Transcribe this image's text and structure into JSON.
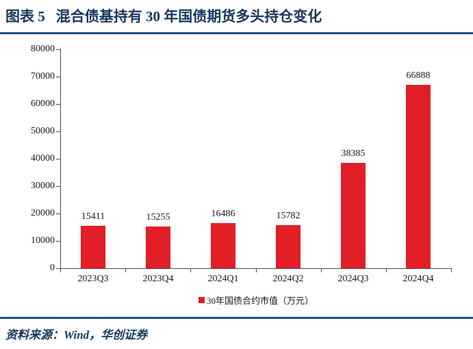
{
  "page": {
    "figure_label": "图表 5",
    "title": "混合债基持有 30 年国债期货多头持仓变化",
    "source_text": "资料来源：Wind，华创证券"
  },
  "colors": {
    "title_navy": "#17375E",
    "rule_blue": "#1F4E8C",
    "bar_red": "#E21E26",
    "axis_gray": "#4d4d4d"
  },
  "chart_data": {
    "type": "bar",
    "title": "",
    "categories": [
      "2023Q3",
      "2023Q4",
      "2024Q1",
      "2024Q2",
      "2024Q3",
      "2024Q4"
    ],
    "values": [
      15411,
      15255,
      16486,
      15782,
      38385,
      66888
    ],
    "data_labels": [
      "15411",
      "15255",
      "16486",
      "15782",
      "38385",
      "66888"
    ],
    "legend": "30年国债合约市值（万元）",
    "legend_position": "bottom",
    "xlabel": "",
    "ylabel": "",
    "ylim": [
      0,
      80000
    ],
    "y_ticks": [
      0,
      10000,
      20000,
      30000,
      40000,
      50000,
      60000,
      70000,
      80000
    ],
    "grid": false,
    "bar_color": "#E21E26"
  }
}
